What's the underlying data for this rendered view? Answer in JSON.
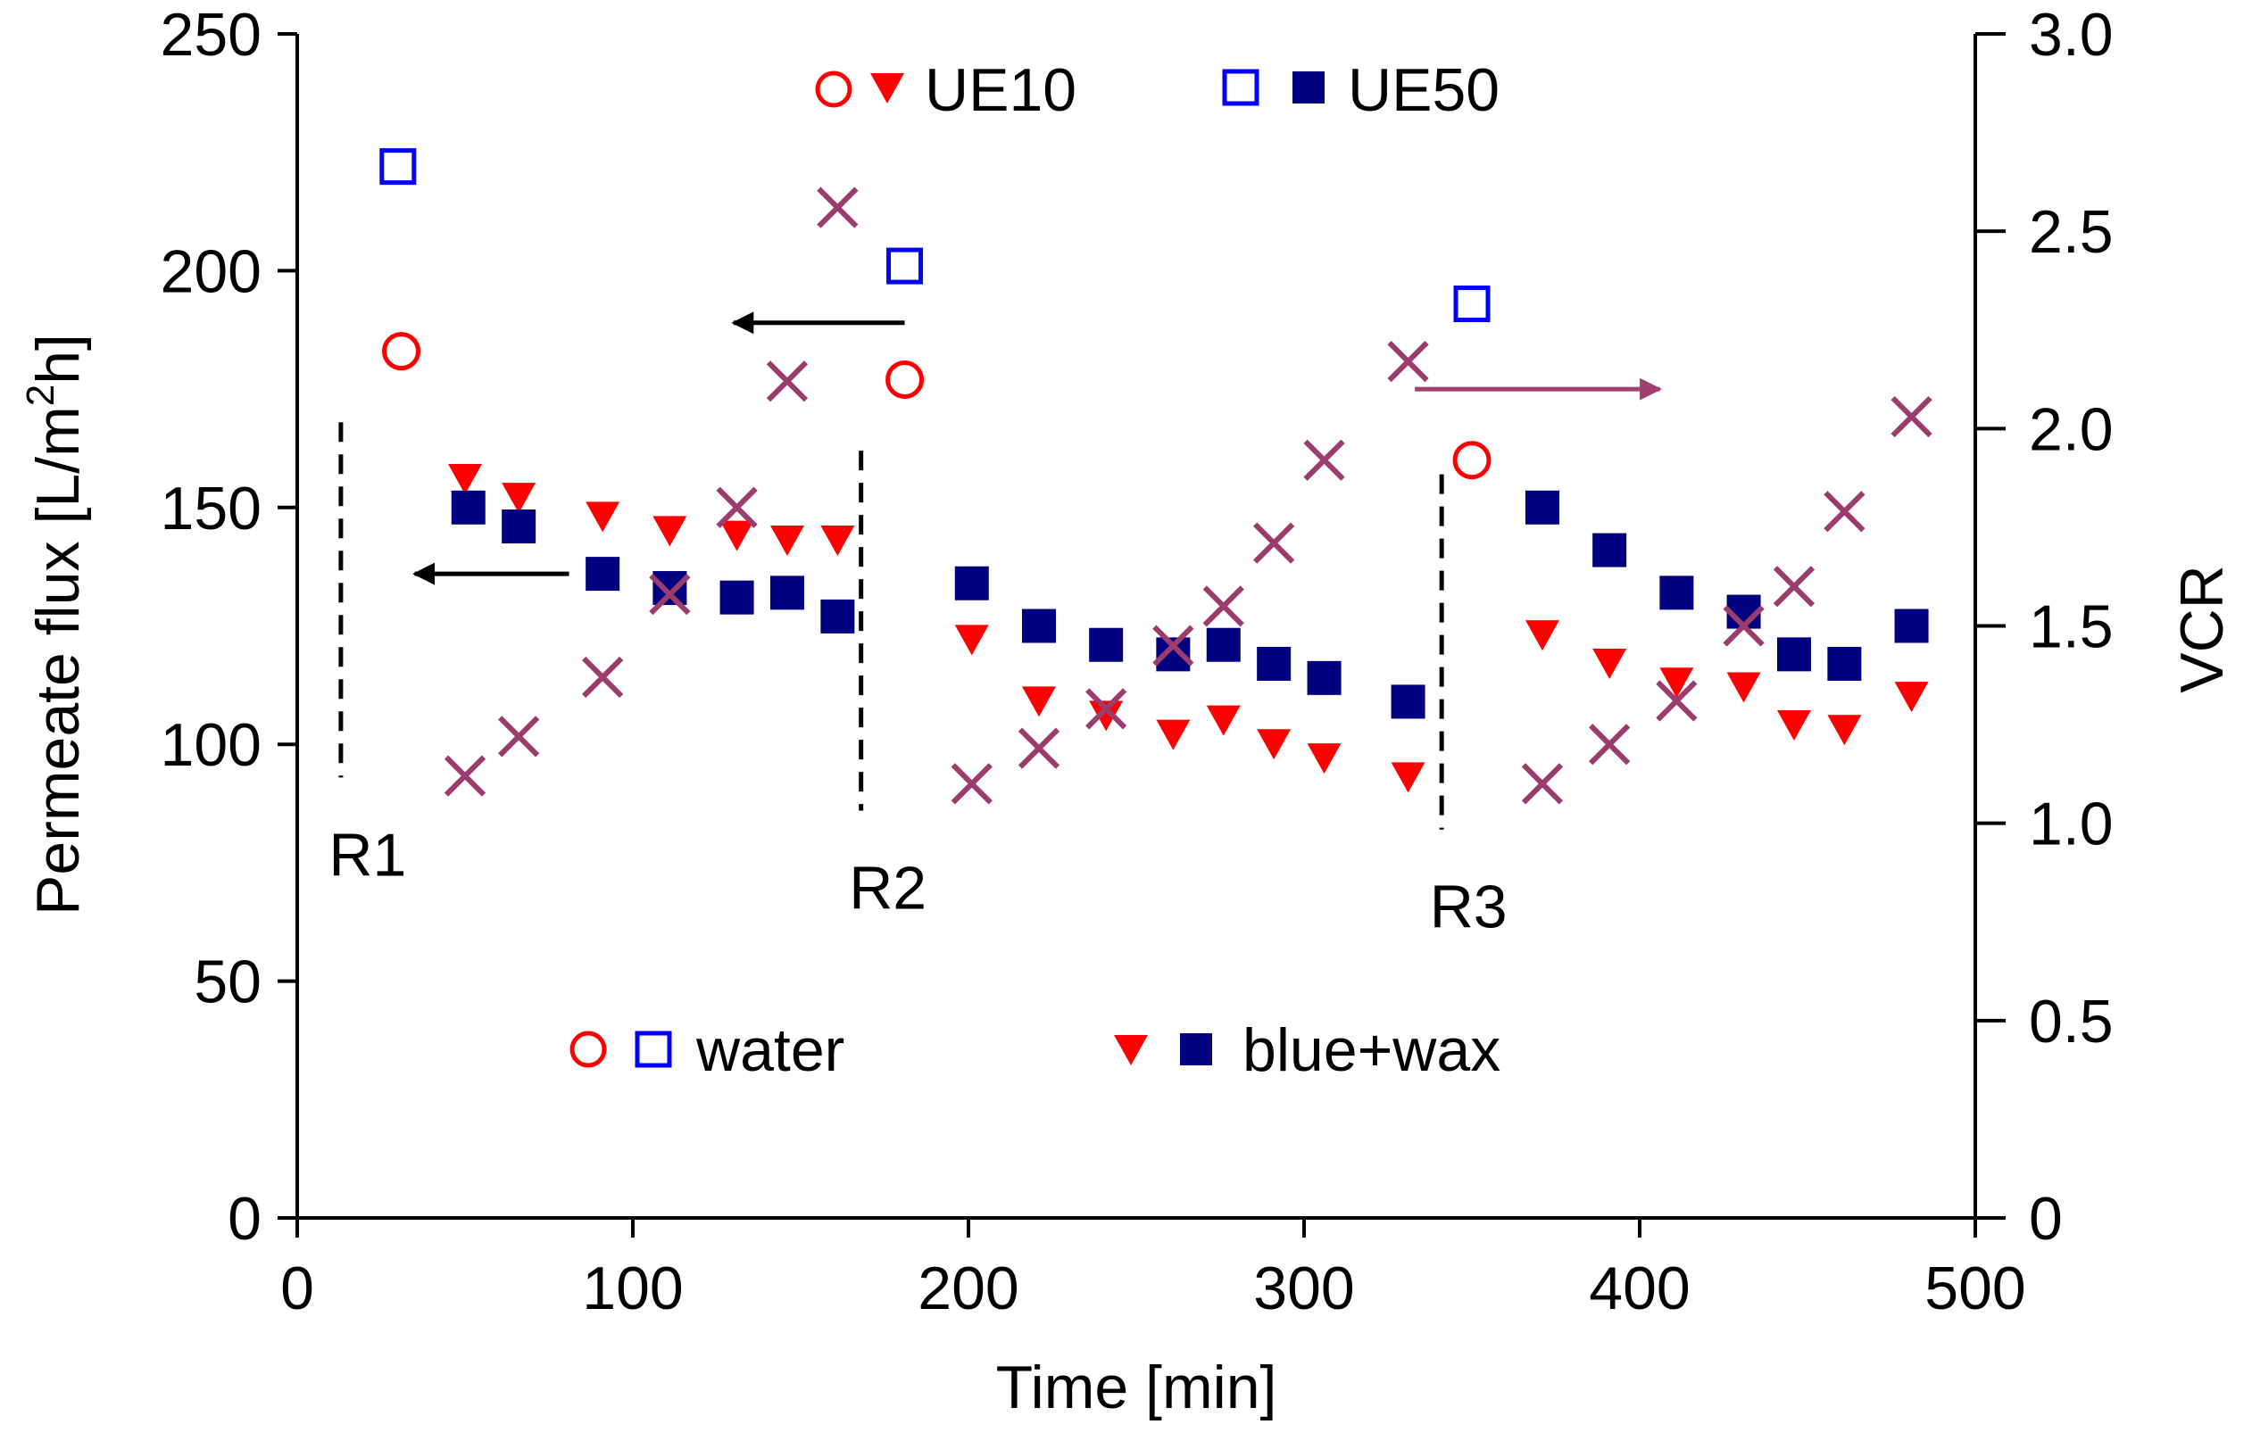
{
  "chart_data": {
    "type": "scatter",
    "xlabel": "Time [min]",
    "ylabel_parts": [
      "Permeate flux [L/m",
      "2",
      "h]"
    ],
    "ylabel2": "VCR",
    "xlim": [
      0,
      500
    ],
    "ylim": [
      0,
      250
    ],
    "ylim2": [
      0,
      3
    ],
    "xticks": [
      0,
      100,
      200,
      300,
      400,
      500
    ],
    "yticks": [
      0,
      50,
      100,
      150,
      200,
      250
    ],
    "yticks2": [
      "0",
      "0.5",
      "1.0",
      "1.5",
      "2.0",
      "2.5",
      "3.0"
    ],
    "yticks2_values": [
      0,
      0.5,
      1.0,
      1.5,
      2.0,
      2.5,
      3.0
    ],
    "colors": {
      "ue10": "#ff0000",
      "ue50_open": "#0000ff",
      "ue50_filled": "#000080",
      "vcr": "#9b3b6e",
      "arrow_black": "#000000",
      "arrow_vcr": "#a04070"
    },
    "series": [
      {
        "name": "UE10 water",
        "marker": "circle-open",
        "axis": "left",
        "x": [
          31,
          181,
          350
        ],
        "y": [
          183,
          177,
          160
        ]
      },
      {
        "name": "UE50 water",
        "marker": "square-open",
        "axis": "left",
        "x": [
          30,
          181,
          350
        ],
        "y": [
          222,
          201,
          193
        ]
      },
      {
        "name": "UE10 blue+wax",
        "marker": "triangle-down",
        "axis": "left",
        "x": [
          50,
          66,
          91,
          111,
          131,
          146,
          161,
          201,
          221,
          241,
          261,
          276,
          291,
          306,
          331,
          371,
          391,
          411,
          431,
          446,
          461,
          481
        ],
        "y": [
          156,
          152,
          148,
          145,
          144,
          143,
          143,
          122,
          109,
          106,
          102,
          105,
          100,
          97,
          93,
          123,
          117,
          113,
          112,
          104,
          103,
          110
        ]
      },
      {
        "name": "UE50 blue+wax",
        "marker": "square-filled",
        "axis": "left",
        "x": [
          51,
          66,
          91,
          111,
          131,
          146,
          161,
          201,
          221,
          241,
          261,
          276,
          291,
          306,
          331,
          371,
          391,
          411,
          431,
          446,
          461,
          481
        ],
        "y": [
          150,
          146,
          136,
          133,
          131,
          132,
          127,
          134,
          125,
          121,
          119,
          121,
          117,
          114,
          109,
          150,
          141,
          132,
          128,
          119,
          117,
          125
        ]
      },
      {
        "name": "VCR",
        "marker": "x",
        "axis": "right",
        "x": [
          50,
          66,
          91,
          111,
          131,
          146,
          161,
          201,
          221,
          241,
          261,
          276,
          291,
          306,
          331,
          371,
          391,
          411,
          431,
          446,
          461,
          481
        ],
        "y": [
          1.12,
          1.22,
          1.37,
          1.58,
          1.8,
          2.12,
          2.56,
          1.1,
          1.19,
          1.29,
          1.45,
          1.55,
          1.71,
          1.92,
          2.17,
          1.1,
          1.2,
          1.31,
          1.5,
          1.6,
          1.79,
          2.03
        ]
      }
    ],
    "regions": [
      {
        "label": "R1",
        "x": 13,
        "y_from": 93,
        "y_to": 168
      },
      {
        "label": "R2",
        "x": 168,
        "y_from": 86,
        "y_to": 162
      },
      {
        "label": "R3",
        "x": 341,
        "y_from": 82,
        "y_to": 157
      }
    ],
    "arrows": [
      {
        "color_key": "arrow_black",
        "y": 136,
        "x_from": 81,
        "x_to": 35
      },
      {
        "color_key": "arrow_black",
        "y": 189,
        "x_from": 181,
        "x_to": 130
      },
      {
        "color_key": "arrow_vcr",
        "y": 175,
        "x_from": 333,
        "x_to": 406
      }
    ],
    "legend_top": {
      "ue10": "UE10",
      "ue50": "UE50"
    },
    "legend_bottom": {
      "water": "water",
      "bluewax": "blue+wax"
    }
  }
}
